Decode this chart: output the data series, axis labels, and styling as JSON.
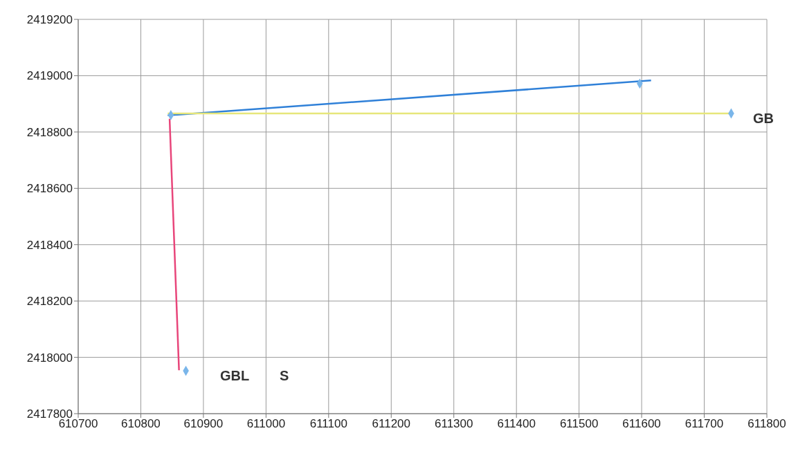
{
  "chart_data": {
    "type": "line",
    "xlim": [
      610700,
      611800
    ],
    "xticks": [
      610700,
      610800,
      610900,
      611000,
      611100,
      611200,
      611300,
      611400,
      611500,
      611600,
      611700,
      611800
    ],
    "ylim": [
      2417800,
      2419200
    ],
    "yticks": [
      2417800,
      2418000,
      2418200,
      2418400,
      2418600,
      2418800,
      2419000,
      2419200
    ],
    "grid": true,
    "legend": false,
    "marker": "none",
    "line_style": "solid",
    "series": [
      {
        "color": "#2f80d8",
        "x": [
          610843,
          611615
        ],
        "values": [
          2418859,
          2418983
        ]
      },
      {
        "color": "#e6e67a",
        "x": [
          610843,
          611743
        ],
        "values": [
          2418866,
          2418866
        ]
      },
      {
        "color": "#e8457a",
        "x": [
          610846,
          610861
        ],
        "values": [
          2418847,
          2417954
        ]
      },
      {
        "type": "scatter",
        "marker": "diamond",
        "color": "#7ab6ea",
        "x": [
          610848,
          611597,
          610872,
          611743
        ],
        "values": [
          2418860,
          2418972,
          2417952,
          2418866
        ]
      }
    ],
    "annotations": [
      "GBL",
      "S",
      "GB"
    ]
  }
}
